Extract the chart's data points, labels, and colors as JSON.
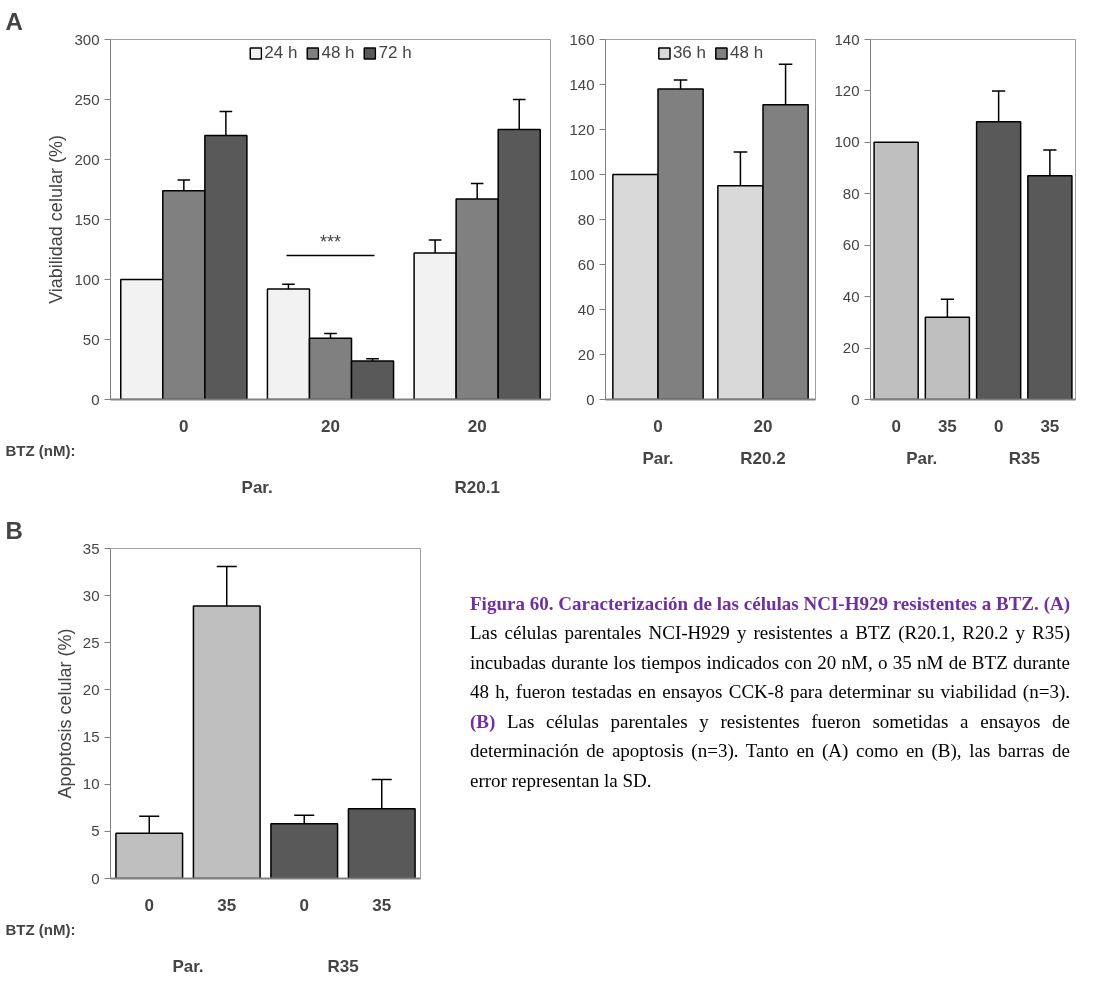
{
  "chart_data": [
    {
      "type": "bar",
      "ylabel": "Viabilidad celular (%)",
      "categories": [
        "0",
        "20",
        "20"
      ],
      "series": [
        {
          "name": "24 h",
          "color": "#f2f2f2",
          "values": [
            100,
            92,
            122
          ],
          "errors": [
            null,
            4,
            11
          ]
        },
        {
          "name": "48 h",
          "color": "#808080",
          "values": [
            174,
            51,
            167
          ],
          "errors": [
            9,
            4,
            13
          ]
        },
        {
          "name": "72 h",
          "color": "#595959",
          "values": [
            220,
            32,
            225
          ],
          "errors": [
            20,
            2,
            25
          ]
        }
      ],
      "ylim": [
        0,
        300
      ],
      "yticks": [
        0,
        50,
        100,
        150,
        200,
        250,
        300
      ],
      "grid": false,
      "legend": "top",
      "annotations": [
        "A",
        "BTZ (nM):",
        "***",
        "Par.",
        "R20.1"
      ]
    },
    {
      "type": "bar",
      "categories": [
        "0",
        "20"
      ],
      "series": [
        {
          "name": "36 h",
          "color": "#d9d9d9",
          "values": [
            100,
            95
          ],
          "errors": [
            null,
            15
          ]
        },
        {
          "name": "48 h",
          "color": "#808080",
          "values": [
            138,
            131
          ],
          "errors": [
            4,
            18
          ]
        }
      ],
      "ylim": [
        0,
        160
      ],
      "yticks": [
        0,
        20,
        40,
        60,
        80,
        100,
        120,
        140,
        160
      ],
      "grid": false,
      "legend": "top",
      "annotations": [
        "Par.",
        "R20.2"
      ]
    },
    {
      "type": "bar",
      "categories": [
        "0",
        "35",
        "0",
        "35"
      ],
      "values": [
        100,
        32,
        108,
        87
      ],
      "errors": [
        null,
        7,
        12,
        10
      ],
      "colors": [
        "#bfbfbf",
        "#bfbfbf",
        "#595959",
        "#595959"
      ],
      "ylim": [
        0,
        140
      ],
      "yticks": [
        0,
        20,
        40,
        60,
        80,
        100,
        120,
        140
      ],
      "grid": false,
      "annotations": [
        "Par.",
        "R35"
      ]
    },
    {
      "type": "bar",
      "ylabel": "Apoptosis celular (%)",
      "categories": [
        "0",
        "35",
        "0",
        "35"
      ],
      "values": [
        4.8,
        28.9,
        5.8,
        7.4
      ],
      "errors": [
        1.8,
        4.2,
        0.9,
        3.1
      ],
      "colors": [
        "#bfbfbf",
        "#bfbfbf",
        "#595959",
        "#595959"
      ],
      "ylim": [
        0,
        35
      ],
      "yticks": [
        0,
        5,
        10,
        15,
        20,
        25,
        30,
        35
      ],
      "grid": false,
      "annotations": [
        "B",
        "BTZ (nM):",
        "Par.",
        "R35"
      ]
    },
    {
      "type": "other",
      "title": "Figura 60. Caracterización de las células NCI-H929 resistentes a BTZ.",
      "annotations": [
        "(A)",
        "Las células parentales NCI-H929 y resistentes a BTZ (R20.1, R20.2 y R35) incubadas durante los tiempos indicados con 20 nM, o 35 nM de BTZ durante 48 h, fueron testadas en ensayos CCK-8 para determinar su viabilidad (n=3).",
        "(B)",
        "Las células parentales y resistentes fueron sometidas a ensayos de determinación de apoptosis (n=3). Tanto en (A) como en (B), las barras de error representan la SD."
      ]
    }
  ]
}
